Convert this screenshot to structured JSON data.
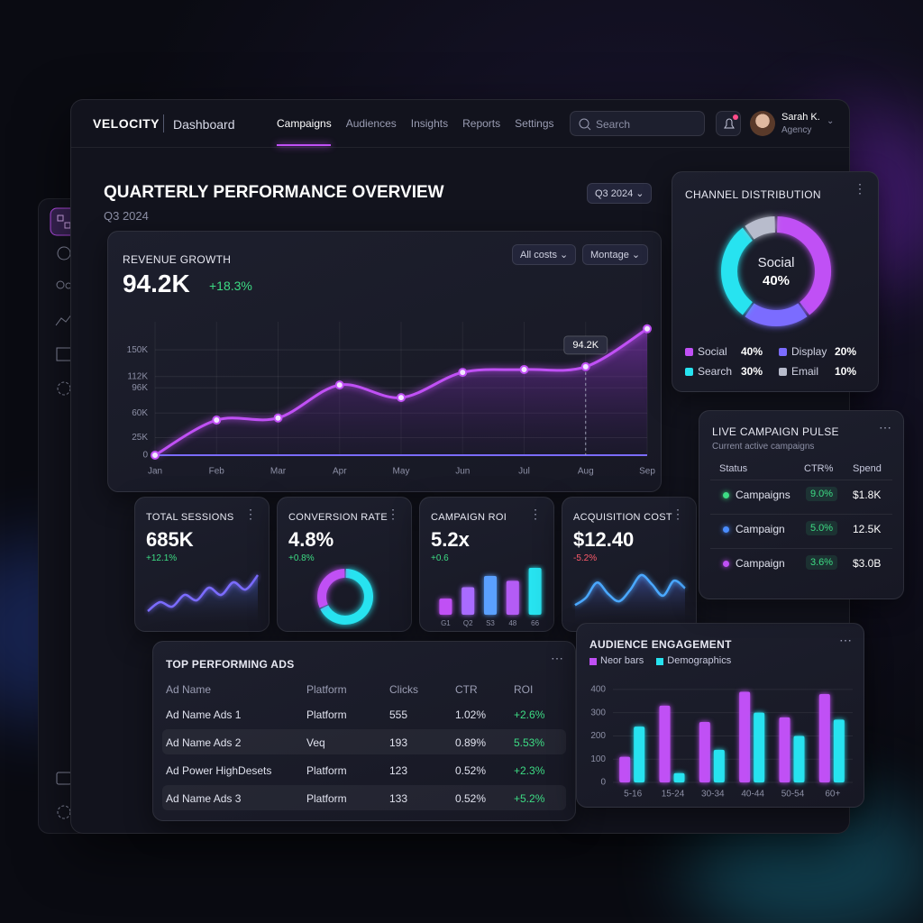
{
  "header": {
    "brand": "VELOCITY",
    "section": "Dashboard",
    "nav": [
      "Campaigns",
      "Audiences",
      "Insights",
      "Reports",
      "Settings"
    ],
    "search": "Search",
    "user_name": "Sarah K.",
    "user_role": "Agency"
  },
  "overview": {
    "title": "QUARTERLY PERFORMANCE OVERVIEW",
    "subtitle": "Q3 2024",
    "period": "Q3 2024"
  },
  "revenue": {
    "type": "area",
    "title": "REVENUE GROWTH",
    "value": "94.2K",
    "change": "+18.3%",
    "filters": [
      "All costs",
      "Montage"
    ],
    "annotation": "94.2K",
    "categories": [
      "Jan",
      "Feb",
      "Mar",
      "Apr",
      "May",
      "Jun",
      "Jul",
      "Aug",
      "Sep"
    ],
    "values": [
      0,
      50000,
      53000,
      100000,
      82000,
      118000,
      122000,
      126000,
      180000
    ],
    "color": "#c050f5",
    "ylim": [
      0,
      190000
    ],
    "yticks": [
      0,
      {
        "value": 25000,
        "label": "25K"
      },
      {
        "value": 60000,
        "label": "60K"
      },
      {
        "value": 96000,
        "label": "96K"
      },
      {
        "value": 112000,
        "label": "112K"
      },
      {
        "value": 150000,
        "label": "150K"
      }
    ],
    "grid": true
  },
  "sessions": {
    "type": "area",
    "title": "TOTAL SESSIONS",
    "value": "685K",
    "change": "+12.1%",
    "values": [
      12,
      22,
      17,
      30,
      24,
      38,
      30,
      44,
      36,
      52
    ],
    "color": "#7b6cff"
  },
  "conversion": {
    "type": "donut",
    "title": "CONVERSION RATE",
    "value": "4.8%",
    "change": "+0.8%",
    "values": [
      68,
      32
    ],
    "colors": [
      "#27e3f0",
      "#c050f5"
    ]
  },
  "roi": {
    "type": "bar",
    "title": "CAMPAIGN ROI",
    "value": "5.2x",
    "change": "+0.6",
    "categories": [
      "G1",
      "Q2",
      "S3",
      "48",
      "66"
    ],
    "values": [
      20,
      34,
      48,
      42,
      58
    ],
    "colors": [
      "#c050f5",
      "#a96bff",
      "#5aa0ff",
      "#b45cf5",
      "#27e3f0"
    ]
  },
  "acquisition": {
    "type": "area",
    "title": "ACQUISITION COST",
    "value": "$12.40",
    "change": "-5.2%",
    "values": [
      18,
      26,
      42,
      30,
      22,
      34,
      50,
      40,
      28,
      44,
      36
    ],
    "color": "#4aa8ff"
  },
  "channels": {
    "type": "donut",
    "title": "CHANNEL DISTRIBUTION",
    "center_label": "Social",
    "center_value": "40%",
    "categories": [
      "Social",
      "Display",
      "Search",
      "Email"
    ],
    "values": [
      40,
      20,
      30,
      10
    ],
    "value_labels": [
      "40%",
      "20%",
      "30%",
      "10%"
    ],
    "colors": [
      "#c050f5",
      "#7b6cff",
      "#27e3f0",
      "#b8bccc"
    ]
  },
  "pulse": {
    "title": "LIVE CAMPAIGN PULSE",
    "subtitle": "Current active campaigns",
    "columns": [
      "Status",
      "CTR%",
      "Spend"
    ],
    "rows": [
      {
        "name": "Campaigns",
        "ctr": "9.0%",
        "spend": "$1.8K",
        "color": "#3ddc84"
      },
      {
        "name": "Campaign",
        "ctr": "5.0%",
        "spend": "12.5K",
        "color": "#4a8dff"
      },
      {
        "name": "Campaign",
        "ctr": "3.6%",
        "spend": "$3.0B",
        "color": "#c050f5"
      }
    ]
  },
  "ads": {
    "title": "TOP PERFORMING ADS",
    "columns": [
      "Ad Name",
      "Platform",
      "Clicks",
      "CTR",
      "ROI"
    ],
    "rows": [
      [
        "Ad Name Ads 1",
        "Platform",
        "555",
        "1.02%",
        "+2.6%"
      ],
      [
        "Ad Name Ads 2",
        "Veq",
        "193",
        "0.89%",
        "5.53%"
      ],
      [
        "Ad Power HighDesets",
        "Platform",
        "123",
        "0.52%",
        "+2.3%"
      ],
      [
        "Ad Name Ads 3",
        "Platform",
        "133",
        "0.52%",
        "+5.2%"
      ]
    ]
  },
  "audience": {
    "type": "bar",
    "title": "AUDIENCE ENGAGEMENT",
    "categories": [
      "5-16",
      "15-24",
      "30-34",
      "40-44",
      "50-54",
      "60+"
    ],
    "series": [
      {
        "name": "Neor bars",
        "color": "#c050f5",
        "values": [
          110,
          330,
          260,
          390,
          280,
          380
        ]
      },
      {
        "name": "Demographics",
        "color": "#27e3f0",
        "values": [
          240,
          40,
          140,
          300,
          200,
          270
        ]
      }
    ],
    "ylim": [
      0,
      450
    ],
    "yticks": [
      0,
      100,
      200,
      300,
      400
    ]
  }
}
